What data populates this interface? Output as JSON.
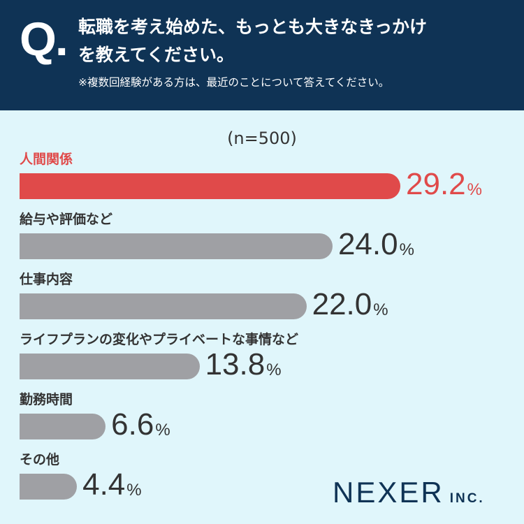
{
  "header": {
    "q_mark": "Q.",
    "question_line1": "転職を考え始めた、もっとも大きなきっかけ",
    "question_line2": "を教えてください。",
    "note": "※複数回経験がある方は、最近のことについて答えてください。"
  },
  "n_label": "(n=500)",
  "colors": {
    "header_bg": "#0f3355",
    "background": "#e0f6fb",
    "highlight": "#e04a4a",
    "bar": "#9fa0a4",
    "text": "#333333"
  },
  "chart_data": {
    "type": "bar",
    "orientation": "horizontal",
    "title": "",
    "xlabel": "",
    "ylabel": "",
    "unit": "%",
    "categories": [
      "人間関係",
      "給与や評価など",
      "仕事内容",
      "ライフプランの変化やプライベートな事情など",
      "勤務時間",
      "その他"
    ],
    "values": [
      29.2,
      24.0,
      22.0,
      13.8,
      6.6,
      4.4
    ],
    "value_labels": [
      "29.2",
      "24.0",
      "22.0",
      "13.8",
      "6.6",
      "4.4"
    ],
    "highlight_index": 0
  },
  "logo": {
    "main": "NEXER",
    "suffix": "INC."
  }
}
